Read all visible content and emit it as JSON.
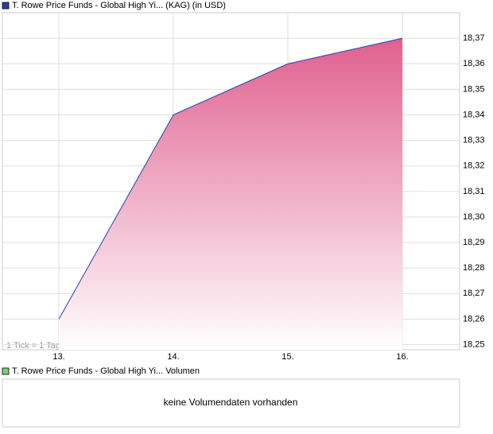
{
  "chart_data": {
    "type": "area",
    "categories": [
      "13.",
      "14.",
      "15.",
      "16."
    ],
    "series": [
      {
        "name": "T. Rowe Price Funds - Global High Yi... (KAG) (in USD)",
        "color": "#2a3fa8",
        "fill": "#e0608f",
        "values": [
          18.26,
          18.34,
          18.36,
          18.37
        ]
      }
    ],
    "ylim": [
      18.248,
      18.38
    ],
    "yticks": [
      {
        "value": 18.25,
        "label": "18,25"
      },
      {
        "value": 18.26,
        "label": "18,26"
      },
      {
        "value": 18.27,
        "label": "18,27"
      },
      {
        "value": 18.28,
        "label": "18,28"
      },
      {
        "value": 18.29,
        "label": "18,29"
      },
      {
        "value": 18.3,
        "label": "18,30"
      },
      {
        "value": 18.31,
        "label": "18,31"
      },
      {
        "value": 18.32,
        "label": "18,32"
      },
      {
        "value": 18.33,
        "label": "18,33"
      },
      {
        "value": 18.34,
        "label": "18,34"
      },
      {
        "value": 18.35,
        "label": "18,35"
      },
      {
        "value": 18.36,
        "label": "18,36"
      },
      {
        "value": 18.37,
        "label": "18,37"
      }
    ],
    "grid": true,
    "note": "1 Tick = 1 Tag",
    "volume_panel": {
      "name": "T. Rowe Price Funds - Global High Yi... Volumen",
      "color": "#7ccf7c",
      "message": "keine Volumendaten vorhanden"
    }
  }
}
